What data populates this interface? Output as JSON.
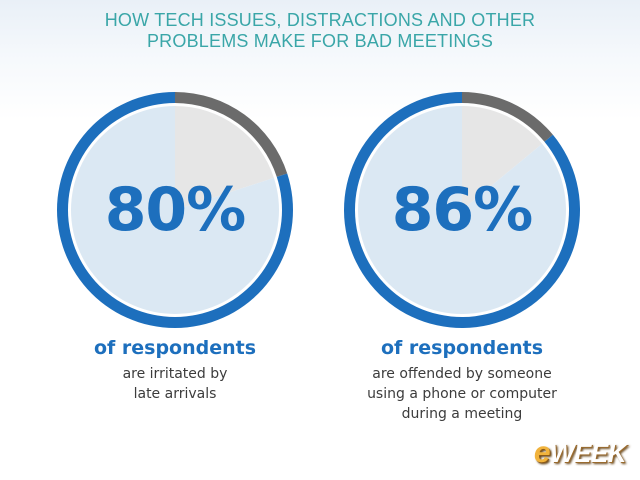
{
  "title_lines": [
    "HOW TECH ISSUES, DISTRACTIONS AND OTHER",
    "PROBLEMS MAKE FOR BAD MEETINGS"
  ],
  "chart_data": [
    {
      "type": "pie",
      "value": 80,
      "value_label": "80%",
      "heading": "of respondents",
      "description_lines": [
        "are irritated by",
        "late arrivals"
      ],
      "colors": {
        "ring": "#1d6fbd",
        "ring_remainder": "#6b6b6b",
        "fill": "#dbe8f3",
        "fill_remainder": "#e6e6e6",
        "text": "#1d6fbd"
      }
    },
    {
      "type": "pie",
      "value": 86,
      "value_label": "86%",
      "heading": "of respondents",
      "description_lines": [
        "are offended by someone",
        "using a phone or computer",
        "during a meeting"
      ],
      "colors": {
        "ring": "#1d6fbd",
        "ring_remainder": "#6b6b6b",
        "fill": "#dbe8f3",
        "fill_remainder": "#e6e6e6",
        "text": "#1d6fbd"
      }
    }
  ],
  "logo": {
    "e": "e",
    "rest": "WEEK"
  }
}
